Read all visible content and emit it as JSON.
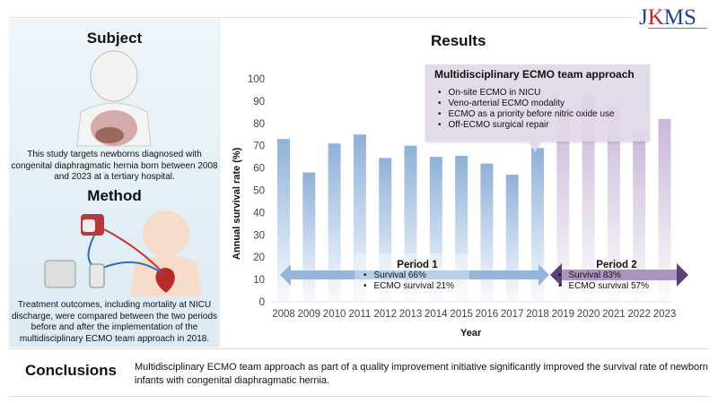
{
  "header": {
    "logo": "JKMS"
  },
  "subject": {
    "title": "Subject",
    "text": "This study targets newborns diagnosed with congenital diaphragmatic hernia born between 2008 and 2023 at a tertiary hospital."
  },
  "method": {
    "title": "Method",
    "text": "Treatment outcomes, including mortality at NICU discharge, were compared between the two periods before and after the implementation of the multidisciplinary ECMO team approach in 2018."
  },
  "results": {
    "title": "Results"
  },
  "callout": {
    "title": "Multidisciplinary ECMO team approach",
    "items": [
      "On-site ECMO in NICU",
      "Veno-arterial ECMO modality",
      "ECMO as a priority before nitric oxide use",
      "Off-ECMO surgical repair"
    ]
  },
  "period1": {
    "label": "Period 1",
    "survival": "Survival 66%",
    "ecmo": "ECMO survival 21%"
  },
  "period2": {
    "label": "Period 2",
    "survival": "Survival 83%",
    "ecmo": "ECMO survival 57%"
  },
  "conclusions": {
    "title": "Conclusions",
    "text": "Multidisciplinary ECMO team approach as part of a quality improvement initiative significantly improved the survival rate of newborn infants with congenital diaphragmatic hernia."
  },
  "colors": {
    "period1": "#8fb1d9",
    "period2": "#c9b8d8",
    "arrow2": "#5b3f78"
  },
  "chart_data": {
    "type": "bar",
    "title": "Results",
    "xlabel": "Year",
    "ylabel": "Annual survival rate (%)",
    "ylim": [
      0,
      100
    ],
    "yticks": [
      "0",
      "10",
      "20",
      "30",
      "40",
      "50",
      "60",
      "70",
      "80",
      "90",
      "100"
    ],
    "categories": [
      "2008",
      "2009",
      "2010",
      "2011",
      "2012",
      "2013",
      "2014",
      "2015",
      "2016",
      "2017",
      "2018",
      "2019",
      "2020",
      "2021",
      "2022",
      "2023"
    ],
    "values": [
      73,
      58,
      71,
      75,
      64.5,
      70,
      65,
      65.5,
      62,
      57,
      69,
      87,
      92,
      88,
      76,
      82
    ],
    "period_of_bar": [
      1,
      1,
      1,
      1,
      1,
      1,
      1,
      1,
      1,
      1,
      1,
      2,
      2,
      2,
      2,
      2
    ]
  }
}
